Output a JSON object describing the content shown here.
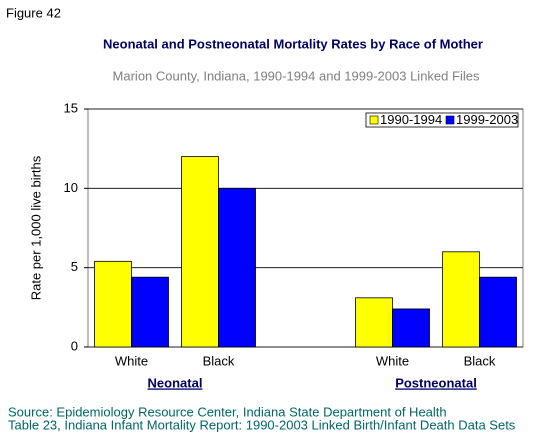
{
  "figure_label": "Figure 42",
  "chart_data": {
    "type": "bar",
    "title": "Neonatal and Postneonatal Mortality Rates by Race of Mother",
    "subtitle": "Marion County, Indiana, 1990-1994 and 1999-2003 Linked Files",
    "y_label": "Rate per 1,000 live births",
    "categories": [
      "White",
      "Black",
      null,
      "White",
      "Black"
    ],
    "group_labels": [
      "Neonatal",
      "Postneonatal"
    ],
    "series": [
      {
        "name": "1990-1994",
        "color": "#ffff00",
        "values": [
          5.4,
          12.0,
          null,
          3.1,
          6.0
        ]
      },
      {
        "name": "1999-2003",
        "color": "#0000ff",
        "values": [
          4.4,
          10.0,
          null,
          2.4,
          4.4
        ]
      }
    ],
    "ylim": [
      0,
      15
    ],
    "yticks": [
      0,
      5,
      10,
      15
    ],
    "grid": true,
    "legend": "top-right"
  },
  "source": [
    "Source: Epidemiology Resource Center, Indiana State Department of Health",
    "Table 23, Indiana Infant Mortality Report: 1990-2003 Linked Birth/Infant Death Data Sets"
  ]
}
